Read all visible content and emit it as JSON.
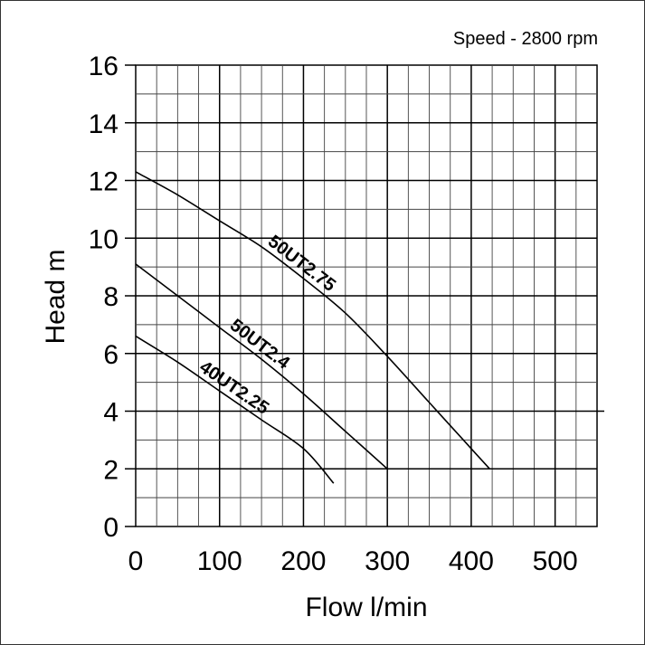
{
  "chart_data": {
    "type": "line",
    "annotation": "Speed - 2800 rpm",
    "xlabel": "Flow l/min",
    "ylabel": "Head m",
    "xlim": [
      0,
      550
    ],
    "ylim": [
      0,
      16
    ],
    "x_ticks": [
      "0",
      "100",
      "200",
      "300",
      "400",
      "500"
    ],
    "y_ticks": [
      "0",
      "2",
      "4",
      "6",
      "8",
      "10",
      "12",
      "14",
      "16"
    ],
    "grid": true,
    "series": [
      {
        "name": "50UT2.75",
        "x": [
          0,
          50,
          100,
          150,
          200,
          250,
          300,
          350,
          400,
          422
        ],
        "y": [
          12.3,
          11.5,
          10.6,
          9.7,
          8.6,
          7.4,
          5.9,
          4.3,
          2.7,
          2.0
        ]
      },
      {
        "name": "50UT2.4",
        "x": [
          0,
          50,
          100,
          150,
          200,
          250,
          300
        ],
        "y": [
          9.1,
          8.0,
          6.9,
          5.8,
          4.6,
          3.3,
          2.0
        ]
      },
      {
        "name": "40UT2.25",
        "x": [
          0,
          50,
          100,
          150,
          200,
          236
        ],
        "y": [
          6.6,
          5.7,
          4.7,
          3.7,
          2.7,
          1.5
        ]
      }
    ]
  }
}
